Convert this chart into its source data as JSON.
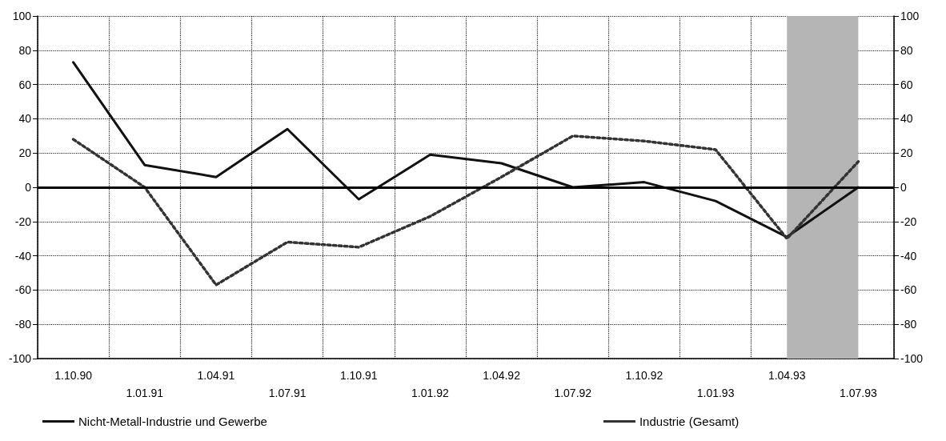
{
  "chart_data": {
    "type": "line",
    "categories": [
      "1.10.90",
      "1.01.91",
      "1.04.91",
      "1.07.91",
      "1.10.91",
      "1.01.92",
      "1.04.92",
      "1.07.92",
      "1.10.92",
      "1.01.93",
      "1.04.93",
      "1.07.93"
    ],
    "series": [
      {
        "name": "Nicht-Metall-Industrie und Gewerbe",
        "color": "#111111",
        "line_style": "solid",
        "values": [
          73,
          13,
          6,
          34,
          -7,
          19,
          14,
          0,
          3,
          -8,
          -29,
          0
        ]
      },
      {
        "name": "Industrie (Gesamt)",
        "color": "#333333",
        "line_style": "dotted",
        "values": [
          28,
          0,
          -57,
          -32,
          -35,
          -17,
          6,
          30,
          27,
          22,
          -30,
          15
        ]
      }
    ],
    "ylim": [
      -100,
      100
    ],
    "yticks": [
      -100,
      -80,
      -60,
      -40,
      -20,
      0,
      20,
      40,
      60,
      80,
      100
    ],
    "y2lim": [
      -100,
      100
    ],
    "y2ticks": [
      -100,
      -80,
      -60,
      -40,
      -20,
      0,
      20,
      40,
      60,
      80,
      100
    ],
    "ref_lines": [
      {
        "axis": "y",
        "value": 0,
        "color": "#000000",
        "line_style": "solid"
      }
    ],
    "bands": [
      {
        "axis": "x",
        "from": "1.04.93",
        "to": "1.07.93",
        "color": "#b5b5b5"
      }
    ],
    "grid": true,
    "legend": "bottom",
    "marker": "none"
  }
}
